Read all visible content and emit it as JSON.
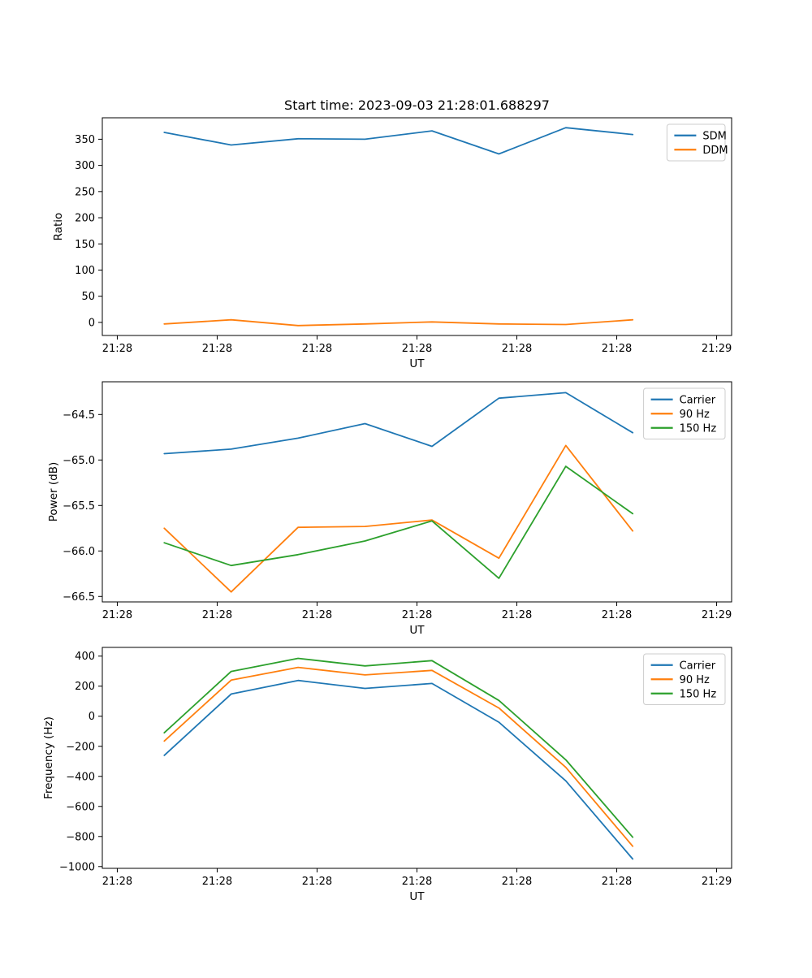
{
  "figure": {
    "title": "Start time: 2023-09-03 21:28:01.688297",
    "background": "#ffffff"
  },
  "palette": {
    "blue": "#1f77b4",
    "orange": "#ff7f0e",
    "green": "#2ca02c",
    "spine": "#000000",
    "legend_border": "#cccccc",
    "text": "#000000"
  },
  "chart_data": [
    {
      "id": "ratio-plot",
      "type": "line",
      "xlabel": "UT",
      "ylabel": "Ratio",
      "grid": false,
      "legend_position": "top-right",
      "x_tick_labels": [
        "21:28",
        "21:28",
        "21:28",
        "21:28",
        "21:28",
        "21:28",
        "21:29"
      ],
      "x_tick_seconds": [
        0,
        10,
        20,
        30,
        40,
        50,
        60
      ],
      "xlim_seconds": [
        -1.5,
        61.5
      ],
      "ylim": [
        -25,
        391
      ],
      "yticks": [
        0,
        50,
        100,
        150,
        200,
        250,
        300,
        350
      ],
      "ytick_labels": [
        "0",
        "50",
        "100",
        "150",
        "200",
        "250",
        "300",
        "350"
      ],
      "x_seconds": [
        4.7,
        11.4,
        18.1,
        24.8,
        31.5,
        38.2,
        44.9,
        51.6
      ],
      "series": [
        {
          "name": "SDM",
          "color": "#1f77b4",
          "values": [
            363,
            339,
            351,
            350,
            366,
            322,
            372,
            359
          ]
        },
        {
          "name": "DDM",
          "color": "#ff7f0e",
          "values": [
            -3,
            5,
            -6,
            -3,
            1,
            -3,
            -4,
            5
          ]
        }
      ]
    },
    {
      "id": "power-plot",
      "type": "line",
      "xlabel": "UT",
      "ylabel": "Power (dB)",
      "grid": false,
      "legend_position": "top-right",
      "x_tick_labels": [
        "21:28",
        "21:28",
        "21:28",
        "21:28",
        "21:28",
        "21:28",
        "21:29"
      ],
      "x_tick_seconds": [
        0,
        10,
        20,
        30,
        40,
        50,
        60
      ],
      "xlim_seconds": [
        -1.5,
        61.5
      ],
      "ylim": [
        -66.56,
        -64.14
      ],
      "yticks": [
        -66.5,
        -66.0,
        -65.5,
        -65.0,
        -64.5
      ],
      "ytick_labels": [
        "−66.5",
        "−66.0",
        "−65.5",
        "−65.0",
        "−64.5"
      ],
      "x_seconds": [
        4.7,
        11.4,
        18.1,
        24.8,
        31.5,
        38.2,
        44.9,
        51.6
      ],
      "series": [
        {
          "name": "Carrier",
          "color": "#1f77b4",
          "values": [
            -64.93,
            -64.88,
            -64.76,
            -64.6,
            -64.85,
            -64.32,
            -64.26,
            -64.7
          ]
        },
        {
          "name": "90 Hz",
          "color": "#ff7f0e",
          "values": [
            -65.75,
            -66.45,
            -65.74,
            -65.73,
            -65.66,
            -66.08,
            -64.84,
            -65.78
          ]
        },
        {
          "name": "150 Hz",
          "color": "#2ca02c",
          "values": [
            -65.91,
            -66.16,
            -66.04,
            -65.89,
            -65.67,
            -66.3,
            -65.07,
            -65.59
          ]
        }
      ]
    },
    {
      "id": "frequency-plot",
      "type": "line",
      "xlabel": "UT",
      "ylabel": "Frequency (Hz)",
      "grid": false,
      "legend_position": "top-right",
      "x_tick_labels": [
        "21:28",
        "21:28",
        "21:28",
        "21:28",
        "21:28",
        "21:28",
        "21:29"
      ],
      "x_tick_seconds": [
        0,
        10,
        20,
        30,
        40,
        50,
        60
      ],
      "xlim_seconds": [
        -1.5,
        61.5
      ],
      "ylim": [
        -1012,
        458
      ],
      "yticks": [
        -1000,
        -800,
        -600,
        -400,
        -200,
        0,
        200,
        400
      ],
      "ytick_labels": [
        "−1000",
        "−800",
        "−600",
        "−400",
        "−200",
        "0",
        "200",
        "400"
      ],
      "x_seconds": [
        4.7,
        11.4,
        18.1,
        24.8,
        31.5,
        38.2,
        44.9,
        51.6
      ],
      "series": [
        {
          "name": "Carrier",
          "color": "#1f77b4",
          "values": [
            -260,
            148,
            238,
            185,
            218,
            -40,
            -430,
            -950
          ]
        },
        {
          "name": "90 Hz",
          "color": "#ff7f0e",
          "values": [
            -165,
            240,
            325,
            275,
            305,
            55,
            -340,
            -865
          ]
        },
        {
          "name": "150 Hz",
          "color": "#2ca02c",
          "values": [
            -110,
            298,
            385,
            335,
            370,
            105,
            -290,
            -805
          ]
        }
      ]
    }
  ]
}
